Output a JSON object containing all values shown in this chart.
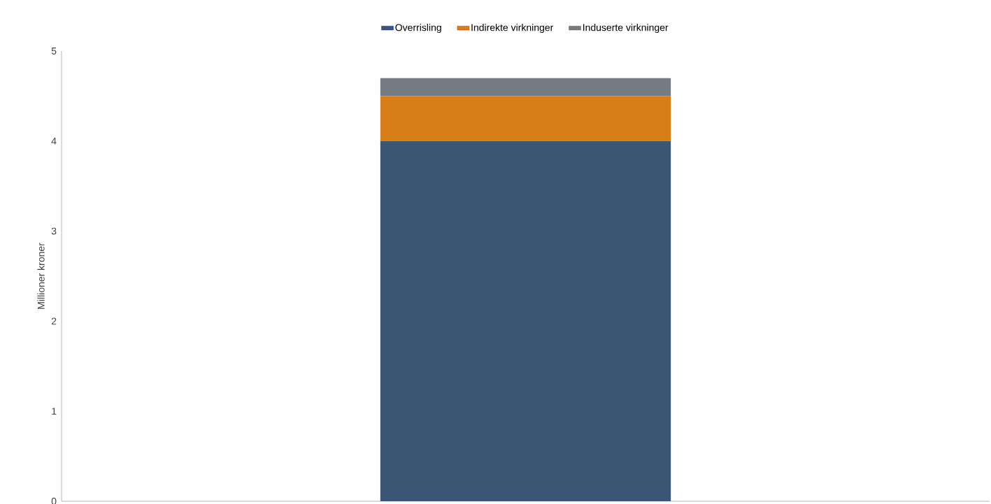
{
  "chart_data": {
    "type": "bar",
    "stacked": true,
    "ylabel": "Millioner kroner",
    "categories": [
      null
    ],
    "series": [
      {
        "name": "Overrisling",
        "color": "#3b5673",
        "values": [
          4.0
        ]
      },
      {
        "name": "Indirekte virkninger",
        "color": "#d57f16",
        "values": [
          0.5
        ]
      },
      {
        "name": "Induserte virkninger",
        "color": "#747b82",
        "values": [
          0.2
        ]
      }
    ],
    "ylim": [
      0,
      5
    ],
    "yticks": [
      0,
      1,
      2,
      3,
      4,
      5
    ],
    "legend": "top"
  }
}
